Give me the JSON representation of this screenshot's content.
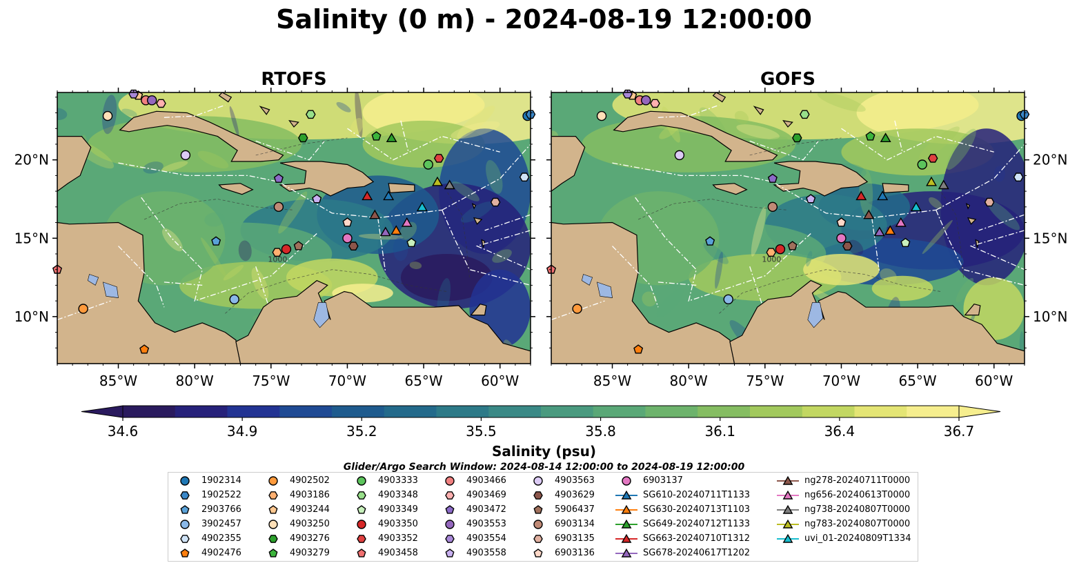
{
  "title": "Salinity (0 m) - 2024-08-19 12:00:00",
  "panels": [
    {
      "title": "RTOFS"
    },
    {
      "title": "GOFS"
    }
  ],
  "colors": {
    "land": "#d2b48c",
    "lakes": "#9db8e3",
    "colormap": [
      "#2a1a5e",
      "#26217a",
      "#223393",
      "#1f4a94",
      "#1e5b8e",
      "#236a8b",
      "#2d7a88",
      "#3a8986",
      "#4a9a7f",
      "#5aa877",
      "#6db36c",
      "#85bd62",
      "#a2c95d",
      "#c2d762",
      "#e4e575",
      "#f6ee8e"
    ]
  },
  "chart_data": {
    "type": "heatmap",
    "variable": "Salinity (0 m)",
    "x_ticks": [
      "85°W",
      "80°W",
      "75°W",
      "70°W",
      "65°W",
      "60°W"
    ],
    "x_tick_values": [
      -85,
      -80,
      -75,
      -70,
      -65,
      -60
    ],
    "y_ticks": [
      "10°N",
      "15°N",
      "20°N"
    ],
    "y_tick_values": [
      10,
      15,
      20
    ],
    "xlim": [
      -89,
      -58
    ],
    "ylim": [
      7,
      24.3
    ],
    "contour_labels": [
      "1000"
    ],
    "colorbar": {
      "label": "Salinity (psu)",
      "min": 34.6,
      "max": 36.7,
      "ticks": [
        "34.6",
        "34.9",
        "35.2",
        "35.5",
        "35.8",
        "36.1",
        "36.4",
        "36.7"
      ],
      "tick_values": [
        34.6,
        34.9,
        35.2,
        35.5,
        35.8,
        36.1,
        36.4,
        36.7
      ],
      "extend": "both"
    },
    "search_window": "Glider/Argo Search Window: 2024-08-14 12:00:00 to 2024-08-19 12:00:00",
    "markers": [
      {
        "id": "1902314",
        "shape": "circle",
        "color": "#1f77b4",
        "lon": -58.2,
        "lat": 22.8
      },
      {
        "id": "1902522",
        "shape": "hexagon",
        "color": "#3a87c8",
        "lon": -58.0,
        "lat": 22.9
      },
      {
        "id": "2903766",
        "shape": "pentagon",
        "color": "#5aa2d8",
        "lon": -78.6,
        "lat": 14.8
      },
      {
        "id": "3902457",
        "shape": "circle",
        "color": "#8ab8e8",
        "lon": -77.4,
        "lat": 11.1
      },
      {
        "id": "4902355",
        "shape": "hexagon",
        "color": "#cfe3f7",
        "lon": -58.4,
        "lat": 18.9
      },
      {
        "id": "4902476",
        "shape": "pentagon",
        "color": "#ff7f0e",
        "lon": -83.3,
        "lat": 7.9
      },
      {
        "id": "4902502",
        "shape": "circle",
        "color": "#ff9a3c",
        "lon": -87.3,
        "lat": 10.5
      },
      {
        "id": "4903186",
        "shape": "hexagon",
        "color": "#ffb070",
        "lon": -74.6,
        "lat": 14.1
      },
      {
        "id": "4903244",
        "shape": "pentagon",
        "color": "#ffc890",
        "lon": -83.7,
        "lat": 24.1
      },
      {
        "id": "4903250",
        "shape": "circle",
        "color": "#ffe0b8",
        "lon": -85.7,
        "lat": 22.8
      },
      {
        "id": "4903276",
        "shape": "hexagon",
        "color": "#2ca02c",
        "lon": -72.9,
        "lat": 21.4
      },
      {
        "id": "4903279",
        "shape": "pentagon",
        "color": "#3cb43c",
        "lon": -68.1,
        "lat": 21.5
      },
      {
        "id": "4903333",
        "shape": "circle",
        "color": "#5cc45c",
        "lon": -64.7,
        "lat": 19.7
      },
      {
        "id": "4903348",
        "shape": "hexagon",
        "color": "#98df8a",
        "lon": -72.4,
        "lat": 22.9
      },
      {
        "id": "4903349",
        "shape": "pentagon",
        "color": "#c8f0bc",
        "lon": -65.8,
        "lat": 14.7
      },
      {
        "id": "4903350",
        "shape": "circle",
        "color": "#d62728",
        "lon": -74.0,
        "lat": 14.3
      },
      {
        "id": "4903352",
        "shape": "hexagon",
        "color": "#e04040",
        "lon": -64.0,
        "lat": 20.1
      },
      {
        "id": "4903458",
        "shape": "pentagon",
        "color": "#f07070",
        "lon": -89.0,
        "lat": 13.0
      },
      {
        "id": "4903466",
        "shape": "circle",
        "color": "#f08080",
        "lon": -83.2,
        "lat": 23.8
      },
      {
        "id": "4903469",
        "shape": "hexagon",
        "color": "#ffb0b0",
        "lon": -82.2,
        "lat": 23.6
      },
      {
        "id": "4903472",
        "shape": "pentagon",
        "color": "#8c6bc8",
        "lon": -74.5,
        "lat": 18.8
      },
      {
        "id": "4903553",
        "shape": "circle",
        "color": "#9467bd",
        "lon": -82.8,
        "lat": 23.8
      },
      {
        "id": "4903554",
        "shape": "hexagon",
        "color": "#a888d8",
        "lon": -84.0,
        "lat": 24.2
      },
      {
        "id": "4903558",
        "shape": "pentagon",
        "color": "#c8b0f0",
        "lon": -72.0,
        "lat": 17.5
      },
      {
        "id": "4903563",
        "shape": "circle",
        "color": "#dccbf5",
        "lon": -80.6,
        "lat": 20.3
      },
      {
        "id": "4903629",
        "shape": "hexagon",
        "color": "#8c564b",
        "lon": -69.6,
        "lat": 14.5
      },
      {
        "id": "5906437",
        "shape": "pentagon",
        "color": "#a0705c",
        "lon": -73.2,
        "lat": 14.5
      },
      {
        "id": "6903134",
        "shape": "circle",
        "color": "#c08a76",
        "lon": -74.5,
        "lat": 17.0
      },
      {
        "id": "6903135",
        "shape": "hexagon",
        "color": "#e0b0a0",
        "lon": -60.3,
        "lat": 17.3
      },
      {
        "id": "6903136",
        "shape": "pentagon",
        "color": "#ffd8c8",
        "lon": -70.0,
        "lat": 16.0
      },
      {
        "id": "6903137",
        "shape": "circle",
        "color": "#e377c2",
        "lon": -70.0,
        "lat": 15.0
      },
      {
        "id": "SG610-20240711T1133",
        "shape": "triangle",
        "color": "#1f77b4",
        "lon": -67.3,
        "lat": 17.7
      },
      {
        "id": "SG630-20240713T1103",
        "shape": "triangle",
        "color": "#ff7f0e",
        "lon": -66.8,
        "lat": 15.5
      },
      {
        "id": "SG649-20240712T1133",
        "shape": "triangle",
        "color": "#2ca02c",
        "lon": -67.1,
        "lat": 21.4
      },
      {
        "id": "SG663-20240710T1312",
        "shape": "triangle",
        "color": "#d62728",
        "lon": -68.7,
        "lat": 17.7
      },
      {
        "id": "SG678-20240617T1202",
        "shape": "triangle",
        "color": "#9467bd",
        "lon": -67.5,
        "lat": 15.4
      },
      {
        "id": "ng278-20240711T0000",
        "shape": "triangle",
        "color": "#8c564b",
        "lon": -68.2,
        "lat": 16.5
      },
      {
        "id": "ng656-20240613T0000",
        "shape": "triangle",
        "color": "#e377c2",
        "lon": -66.1,
        "lat": 16.0
      },
      {
        "id": "ng738-20240807T0000",
        "shape": "triangle",
        "color": "#7f7f7f",
        "lon": -63.3,
        "lat": 18.4
      },
      {
        "id": "ng783-20240807T0000",
        "shape": "triangle",
        "color": "#bcbd22",
        "lon": -64.1,
        "lat": 18.6
      },
      {
        "id": "uvi_01-20240809T1334",
        "shape": "triangle",
        "color": "#17becf",
        "lon": -65.1,
        "lat": 17.0
      }
    ]
  },
  "legend": {
    "columns": [
      [
        {
          "label": "1902314",
          "shape": "circle",
          "color": "#1f77b4"
        },
        {
          "label": "1902522",
          "shape": "hexagon",
          "color": "#3a87c8"
        },
        {
          "label": "2903766",
          "shape": "pentagon",
          "color": "#5aa2d8"
        },
        {
          "label": "3902457",
          "shape": "circle",
          "color": "#8ab8e8"
        },
        {
          "label": "4902355",
          "shape": "hexagon",
          "color": "#cfe3f7"
        },
        {
          "label": "4902476",
          "shape": "pentagon",
          "color": "#ff7f0e"
        }
      ],
      [
        {
          "label": "4902502",
          "shape": "circle",
          "color": "#ff9a3c"
        },
        {
          "label": "4903186",
          "shape": "hexagon",
          "color": "#ffb070"
        },
        {
          "label": "4903244",
          "shape": "pentagon",
          "color": "#ffc890"
        },
        {
          "label": "4903250",
          "shape": "circle",
          "color": "#ffe0b8"
        },
        {
          "label": "4903276",
          "shape": "hexagon",
          "color": "#2ca02c"
        },
        {
          "label": "4903279",
          "shape": "pentagon",
          "color": "#3cb43c"
        }
      ],
      [
        {
          "label": "4903333",
          "shape": "circle",
          "color": "#5cc45c"
        },
        {
          "label": "4903348",
          "shape": "hexagon",
          "color": "#98df8a"
        },
        {
          "label": "4903349",
          "shape": "pentagon",
          "color": "#c8f0bc"
        },
        {
          "label": "4903350",
          "shape": "circle",
          "color": "#d62728"
        },
        {
          "label": "4903352",
          "shape": "hexagon",
          "color": "#e04040"
        },
        {
          "label": "4903458",
          "shape": "pentagon",
          "color": "#f07070"
        }
      ],
      [
        {
          "label": "4903466",
          "shape": "circle",
          "color": "#f08080"
        },
        {
          "label": "4903469",
          "shape": "hexagon",
          "color": "#ffb0b0"
        },
        {
          "label": "4903472",
          "shape": "pentagon",
          "color": "#8c6bc8"
        },
        {
          "label": "4903553",
          "shape": "circle",
          "color": "#9467bd"
        },
        {
          "label": "4903554",
          "shape": "hexagon",
          "color": "#a888d8"
        },
        {
          "label": "4903558",
          "shape": "pentagon",
          "color": "#c8b0f0"
        }
      ],
      [
        {
          "label": "4903563",
          "shape": "circle",
          "color": "#dccbf5"
        },
        {
          "label": "4903629",
          "shape": "hexagon",
          "color": "#8c564b"
        },
        {
          "label": "5906437",
          "shape": "pentagon",
          "color": "#a0705c"
        },
        {
          "label": "6903134",
          "shape": "circle",
          "color": "#c08a76"
        },
        {
          "label": "6903135",
          "shape": "hexagon",
          "color": "#e0b0a0"
        },
        {
          "label": "6903136",
          "shape": "pentagon",
          "color": "#ffd8c8"
        }
      ],
      [
        {
          "label": "6903137",
          "shape": "circle",
          "color": "#e377c2"
        },
        {
          "label": "SG610-20240711T1133",
          "shape": "triangle",
          "color": "#1f77b4"
        },
        {
          "label": "SG630-20240713T1103",
          "shape": "triangle",
          "color": "#ff7f0e"
        },
        {
          "label": "SG649-20240712T1133",
          "shape": "triangle",
          "color": "#2ca02c"
        },
        {
          "label": "SG663-20240710T1312",
          "shape": "triangle",
          "color": "#d62728"
        },
        {
          "label": "SG678-20240617T1202",
          "shape": "triangle",
          "color": "#9467bd"
        }
      ],
      [
        {
          "label": "ng278-20240711T0000",
          "shape": "triangle",
          "color": "#8c564b"
        },
        {
          "label": "ng656-20240613T0000",
          "shape": "triangle",
          "color": "#e377c2"
        },
        {
          "label": "ng738-20240807T0000",
          "shape": "triangle",
          "color": "#7f7f7f"
        },
        {
          "label": "ng783-20240807T0000",
          "shape": "triangle",
          "color": "#bcbd22"
        },
        {
          "label": "uvi_01-20240809T1334",
          "shape": "triangle",
          "color": "#17becf"
        }
      ]
    ]
  }
}
